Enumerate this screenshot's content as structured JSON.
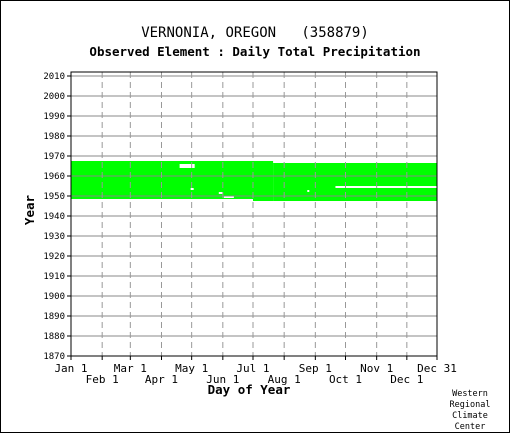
{
  "title": "VERNONIA, OREGON   (358879)",
  "subtitle": "Observed Element : Daily Total Precipitation",
  "credit": [
    "Western",
    "Regional",
    "Climate",
    "Center"
  ],
  "chart_data": {
    "type": "heatmap",
    "title": "VERNONIA, OREGON   (358879)",
    "subtitle": "Observed Element : Daily Total Precipitation",
    "xlabel": "Day of Year",
    "ylabel": "Year",
    "xlim": [
      1,
      365
    ],
    "ylim": [
      1870,
      2012
    ],
    "x_ticks_upper": [
      {
        "label": "Jan 1",
        "day": 1
      },
      {
        "label": "Mar 1",
        "day": 60
      },
      {
        "label": "May 1",
        "day": 121
      },
      {
        "label": "Jul 1",
        "day": 182
      },
      {
        "label": "Sep 1",
        "day": 244
      },
      {
        "label": "Nov 1",
        "day": 305
      },
      {
        "label": "Dec 31",
        "day": 365
      }
    ],
    "x_ticks_lower": [
      {
        "label": "Feb 1",
        "day": 32
      },
      {
        "label": "Apr 1",
        "day": 91
      },
      {
        "label": "Jun 1",
        "day": 152
      },
      {
        "label": "Aug 1",
        "day": 213
      },
      {
        "label": "Oct 1",
        "day": 274
      },
      {
        "label": "Dec 1",
        "day": 335
      }
    ],
    "y_ticks": [
      1870,
      1880,
      1890,
      1900,
      1910,
      1920,
      1930,
      1940,
      1950,
      1960,
      1970,
      1980,
      1990,
      2000,
      2010
    ],
    "grid": true,
    "colors": {
      "data": "#00ff00",
      "missing": "#ffffff",
      "grid_h": "#888888",
      "grid_v": "#999999"
    },
    "data_blocks": [
      {
        "day_start": 1,
        "day_end": 182,
        "year_start": 1948.5,
        "year_end": 1967.5
      },
      {
        "day_start": 182,
        "day_end": 202,
        "year_start": 1947.5,
        "year_end": 1967.5
      },
      {
        "day_start": 202,
        "day_end": 365,
        "year_start": 1947.5,
        "year_end": 1966.5
      }
    ],
    "missing_segments": [
      {
        "day_start": 109,
        "day_end": 124,
        "year_start": 1964.0,
        "year_end": 1966.0
      },
      {
        "day_start": 120,
        "day_end": 123,
        "year_start": 1953.0,
        "year_end": 1954.0
      },
      {
        "day_start": 148,
        "day_end": 152,
        "year_start": 1951.0,
        "year_end": 1952.0
      },
      {
        "day_start": 153,
        "day_end": 163,
        "year_start": 1949.0,
        "year_end": 1950.0
      },
      {
        "day_start": 164,
        "day_end": 182,
        "year_start": 1948.0,
        "year_end": 1948.5
      },
      {
        "day_start": 236,
        "day_end": 238,
        "year_start": 1952.0,
        "year_end": 1953.0
      },
      {
        "day_start": 264,
        "day_end": 365,
        "year_start": 1954.0,
        "year_end": 1955.0
      }
    ]
  }
}
